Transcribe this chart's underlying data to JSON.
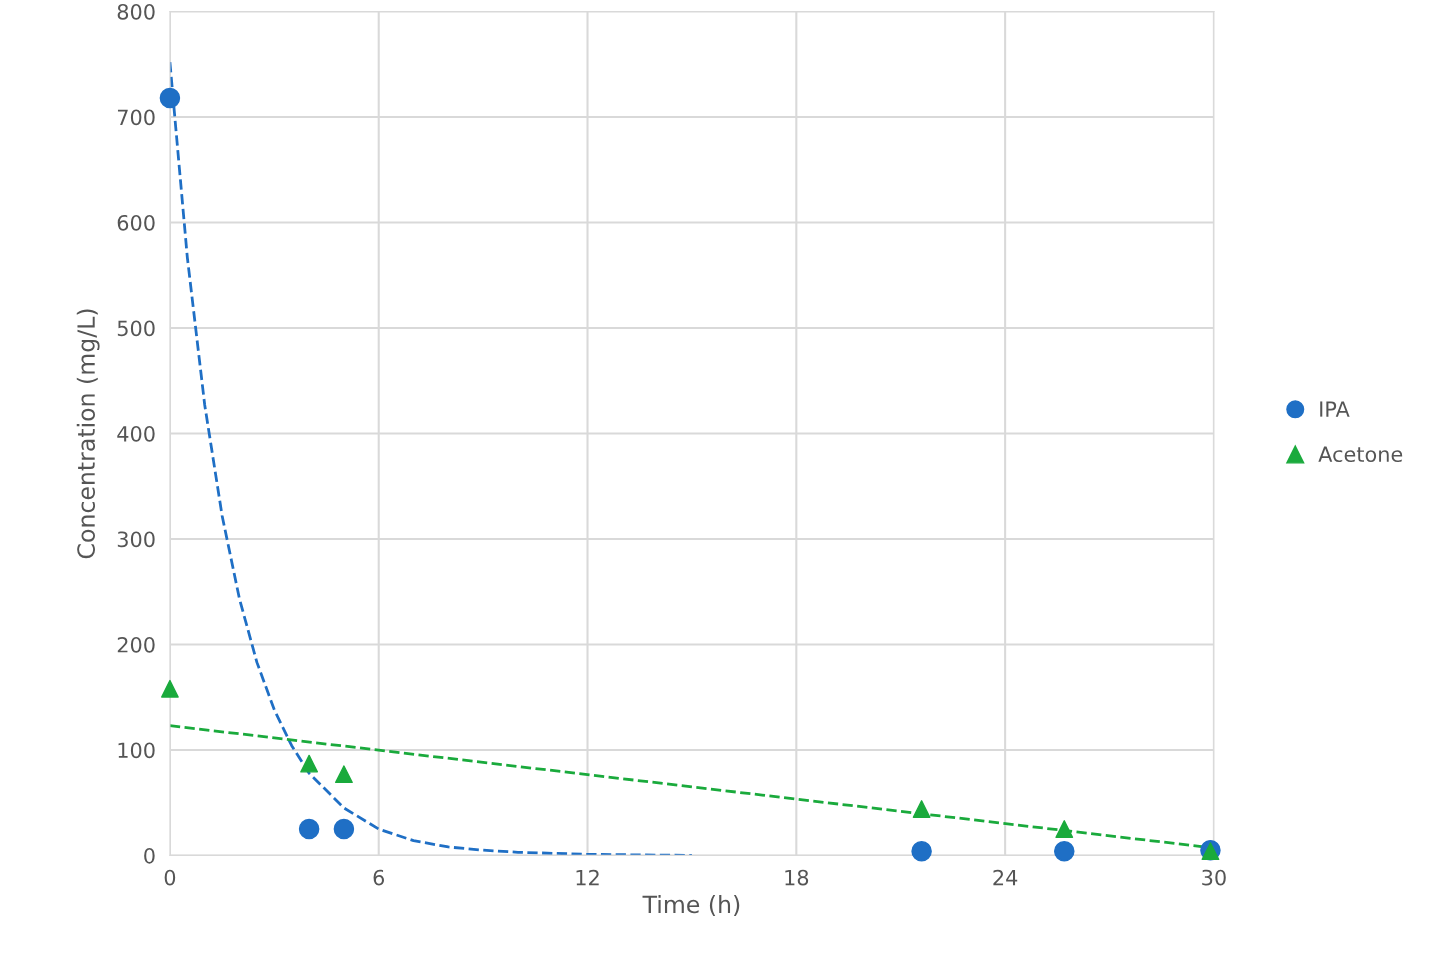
{
  "chart_data": {
    "type": "scatter",
    "xlabel": "Time (h)",
    "ylabel": "Concentration (mg/L)",
    "xlim": [
      0,
      30
    ],
    "xticks": [
      0,
      6,
      12,
      18,
      24,
      30
    ],
    "ylim": [
      0,
      800
    ],
    "yticks": [
      0,
      100,
      200,
      300,
      400,
      500,
      600,
      700,
      800
    ],
    "grid": true,
    "legend": "right",
    "series": [
      {
        "name": "IPA",
        "marker": "circle",
        "color": "#1f6fc5",
        "x": [
          0,
          4,
          5,
          21.6,
          25.7,
          29.9
        ],
        "values": [
          718,
          25,
          25,
          4,
          4,
          5
        ]
      },
      {
        "name": "Acetone",
        "marker": "triangle",
        "color": "#1aaa3c",
        "x": [
          0,
          4,
          5,
          21.6,
          25.7,
          29.9
        ],
        "values": [
          158,
          87,
          77,
          44,
          25,
          4
        ]
      },
      {
        "type": "line",
        "line_style": "dashed",
        "marker": "none",
        "color": "#1f6fc5",
        "x": [
          0,
          0.5,
          1,
          1.5,
          2,
          2.5,
          3,
          3.5,
          4,
          5,
          6,
          7,
          8,
          9,
          10,
          12,
          15
        ],
        "values": [
          752,
          567,
          427,
          322,
          243,
          183,
          138,
          104,
          78,
          45,
          25,
          14,
          8,
          5,
          3,
          1,
          0
        ]
      },
      {
        "type": "line",
        "line_style": "dashed",
        "marker": "none",
        "color": "#1aaa3c",
        "x": [
          0,
          30
        ],
        "values": [
          123,
          7
        ]
      }
    ]
  }
}
